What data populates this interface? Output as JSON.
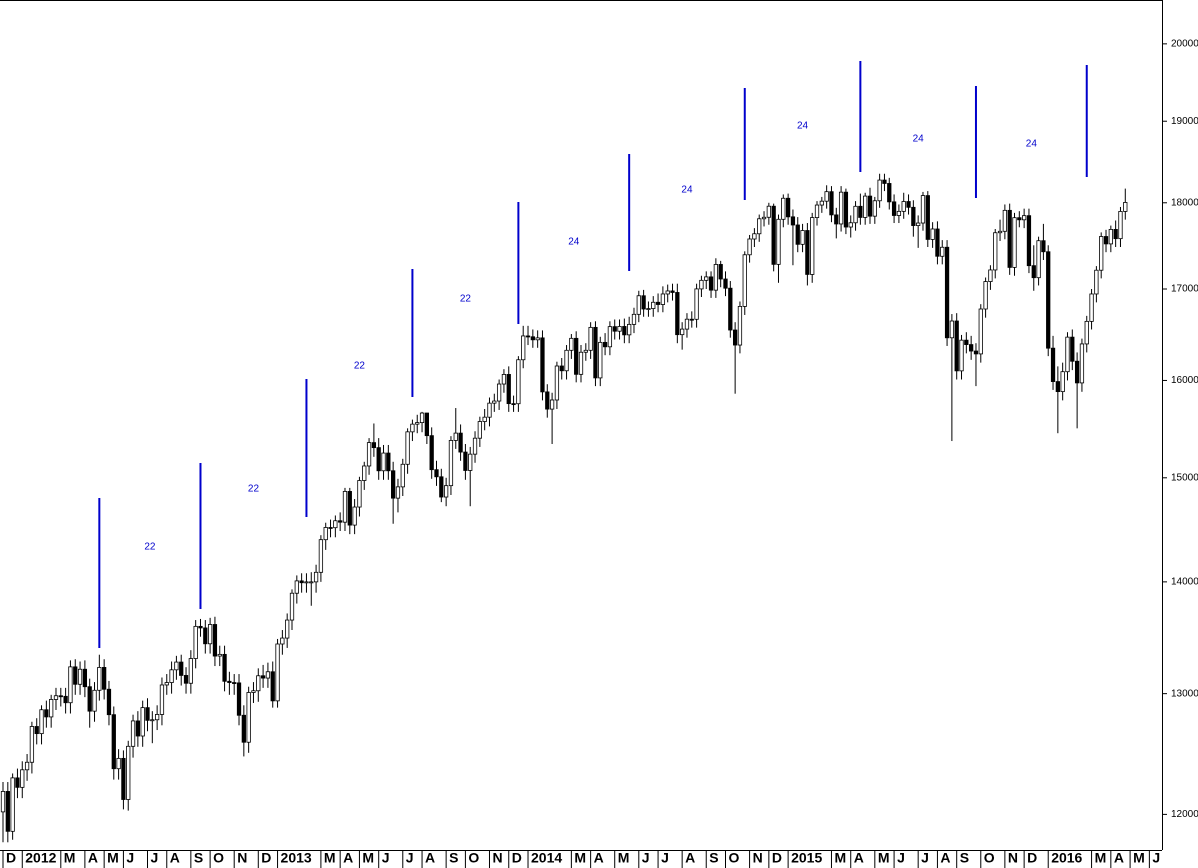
{
  "chart_data": {
    "type": "candlestick",
    "log_scale": true,
    "up_color": "#ffffff",
    "down_color": "#000000",
    "cycle_color": "#0000cc",
    "ylim": [
      11720,
      20590
    ],
    "yticks": [
      12000,
      13000,
      14000,
      15000,
      16000,
      17000,
      18000,
      19000,
      20000
    ],
    "annotations": [
      "22",
      "22",
      "22",
      "22",
      "24",
      "24",
      "24",
      "24",
      "24"
    ],
    "categories": [
      "D",
      null,
      null,
      null,
      "2012",
      null,
      null,
      null,
      null,
      null,
      null,
      null,
      "M",
      null,
      null,
      null,
      null,
      "A",
      null,
      null,
      null,
      "M",
      null,
      null,
      null,
      "J",
      null,
      null,
      null,
      null,
      "J",
      null,
      null,
      null,
      "A",
      null,
      null,
      null,
      null,
      "S",
      null,
      null,
      null,
      "O",
      null,
      null,
      null,
      null,
      "N",
      null,
      null,
      null,
      null,
      "D",
      null,
      null,
      null,
      "2013",
      null,
      null,
      null,
      null,
      null,
      null,
      null,
      null,
      "M",
      null,
      null,
      null,
      "A",
      null,
      null,
      null,
      "M",
      null,
      null,
      null,
      "J",
      null,
      null,
      null,
      null,
      "J",
      null,
      null,
      null,
      "A",
      null,
      null,
      null,
      null,
      "S",
      null,
      null,
      null,
      "O",
      null,
      null,
      null,
      null,
      "N",
      null,
      null,
      null,
      "D",
      null,
      null,
      null,
      "2014",
      null,
      null,
      null,
      null,
      null,
      null,
      null,
      null,
      "M",
      null,
      null,
      null,
      "A",
      null,
      null,
      null,
      null,
      "M",
      null,
      null,
      null,
      null,
      "J",
      null,
      null,
      null,
      "J",
      null,
      null,
      null,
      null,
      "A",
      null,
      null,
      null,
      null,
      "S",
      null,
      null,
      null,
      "O",
      null,
      null,
      null,
      null,
      "N",
      null,
      null,
      null,
      "D",
      null,
      null,
      null,
      "2015",
      null,
      null,
      null,
      null,
      null,
      null,
      null,
      null,
      "M",
      null,
      null,
      null,
      "A",
      null,
      null,
      null,
      null,
      "M",
      null,
      null,
      null,
      "J",
      null,
      null,
      null,
      null,
      "J",
      null,
      null,
      null,
      "A",
      null,
      null,
      null,
      "S",
      null,
      null,
      null,
      null,
      "O",
      null,
      null,
      null,
      null,
      "N",
      null,
      null,
      null,
      "D",
      null,
      null,
      null,
      null,
      "2016",
      null,
      null,
      null,
      null,
      null,
      null,
      null,
      null,
      "M",
      null,
      null,
      null,
      "A",
      null,
      null,
      null,
      "M",
      null,
      null,
      null,
      "J",
      null,
      null
    ],
    "open": [
      12020,
      12184,
      11866,
      12294,
      12217,
      12360,
      12422,
      12720,
      12660,
      12862,
      12801,
      12950,
      12982,
      12977,
      12922,
      13233,
      13081,
      13212,
      13060,
      12850,
      13029,
      13228,
      13038,
      12820,
      12369,
      12454,
      12119,
      12554,
      12767,
      12640,
      12880,
      12772,
      12777,
      12822,
      13075,
      13096,
      13207,
      13275,
      13158,
      13090,
      13306,
      13593,
      13579,
      13437,
      13610,
      13328,
      13343,
      13107,
      13096,
      13093,
      12815,
      12588,
      13010,
      13025,
      13155,
      13135,
      13190,
      12938,
      13435,
      13488,
      13650,
      13895,
      14009,
      13992,
      14000,
      14000,
      14089,
      14397,
      14514,
      14512,
      14579,
      14565,
      14865,
      14537,
      14712,
      14973,
      15118,
      15354,
      15303,
      15070,
      15248,
      15070,
      14799,
      14910,
      15135,
      15464,
      15543,
      15559,
      15658,
      15425,
      15081,
      15010,
      14810,
      14922,
      15376,
      15451,
      15258,
      15073,
      15237,
      15399,
      15570,
      15615,
      15761,
      15783,
      15962,
      16064,
      15756,
      15755,
      16221,
      16479,
      16470,
      16437,
      16458,
      15879,
      15699,
      15794,
      16154,
      16103,
      16323,
      16453,
      16065,
      16302,
      16323,
      16573,
      16027,
      16409,
      16361,
      16581,
      16531,
      16583,
      16491,
      16606,
      16717,
      16924,
      16776,
      16781,
      16851,
      16826,
      16944,
      16978,
      16961,
      16493,
      16554,
      16663,
      16662,
      17001,
      17098,
      17137,
      16987,
      17279,
      17113,
      17009,
      16544,
      16380,
      16805,
      17390,
      17573,
      17634,
      17810,
      17828,
      17959,
      17280,
      17804,
      18054,
      17833,
      17737,
      17511,
      17672,
      17165,
      17824,
      17973,
      18019,
      18133,
      17856,
      17749,
      18127,
      17713,
      17763,
      17958,
      17826,
      18080,
      17841,
      18024,
      18273,
      18232,
      18011,
      17849,
      17898,
      18015,
      17946,
      17730,
      17760,
      18086,
      17568,
      17690,
      17373,
      17477,
      16459,
      16643,
      16102,
      16433,
      16385,
      16315,
      16284,
      16776,
      17084,
      17216,
      17646,
      17663,
      17910,
      17245,
      17823,
      17798,
      17847,
      17265,
      17128,
      17553,
      17425,
      16346,
      15988,
      15882,
      16093,
      16466,
      16205,
      15974,
      16392,
      16639,
      16944,
      17213,
      17602,
      17516,
      17685,
      17577,
      17897,
      null,
      null,
      null,
      null,
      null,
      null,
      null
    ],
    "high": [
      12260,
      12260,
      12330,
      12370,
      12430,
      12490,
      12760,
      12790,
      12900,
      12940,
      12990,
      13050,
      13050,
      13050,
      13290,
      13300,
      13280,
      13290,
      13130,
      13100,
      13340,
      13300,
      13110,
      12890,
      12530,
      12520,
      12600,
      12820,
      12850,
      12940,
      12960,
      12850,
      12900,
      13140,
      13170,
      13280,
      13330,
      13340,
      13230,
      13380,
      13650,
      13660,
      13650,
      13670,
      13680,
      13420,
      13420,
      13190,
      13170,
      13170,
      12900,
      13060,
      13100,
      13220,
      13250,
      13270,
      13280,
      13480,
      13560,
      13710,
      13930,
      14060,
      14080,
      14080,
      14090,
      14160,
      14440,
      14560,
      14590,
      14630,
      14660,
      14900,
      14900,
      14790,
      15010,
      15160,
      15400,
      15550,
      15400,
      15330,
      15330,
      15160,
      14990,
      15190,
      15500,
      15590,
      15640,
      15670,
      15660,
      15510,
      15170,
      15090,
      15000,
      15420,
      15710,
      15540,
      15340,
      15310,
      15470,
      15620,
      15700,
      15820,
      15860,
      16010,
      16120,
      16150,
      15840,
      16260,
      16590,
      16590,
      16550,
      16540,
      16540,
      15960,
      15870,
      16200,
      16240,
      16380,
      16500,
      16530,
      16380,
      16400,
      16630,
      16640,
      16470,
      16510,
      16640,
      16660,
      16660,
      16670,
      16690,
      16790,
      16980,
      16990,
      16860,
      16920,
      16950,
      17030,
      17050,
      17060,
      17060,
      16630,
      16730,
      16750,
      17060,
      17150,
      17200,
      17200,
      17350,
      17320,
      17200,
      17090,
      16630,
      16860,
      17430,
      17620,
      17700,
      17860,
      17900,
      18000,
      17990,
      17860,
      18100,
      18110,
      17920,
      17830,
      17750,
      17760,
      17880,
      18020,
      18070,
      18210,
      18200,
      17940,
      18200,
      18170,
      17850,
      18020,
      18110,
      18120,
      18180,
      18070,
      18350,
      18350,
      18300,
      18100,
      17980,
      18120,
      18100,
      18030,
      17850,
      18130,
      18140,
      17770,
      17780,
      17560,
      17560,
      16720,
      16730,
      16490,
      16520,
      16480,
      16400,
      16830,
      17130,
      17270,
      17690,
      17800,
      17980,
      17990,
      17880,
      17900,
      17930,
      17930,
      17500,
      17600,
      17750,
      17500,
      16480,
      16150,
      16190,
      16520,
      16550,
      16300,
      16450,
      16700,
      17000,
      17260,
      17650,
      17680,
      17730,
      17790,
      17950,
      18170,
      null,
      null,
      null,
      null,
      null,
      null,
      null
    ],
    "low": [
      11780,
      11780,
      11800,
      12130,
      12130,
      12270,
      12330,
      12570,
      12570,
      12710,
      12710,
      12860,
      12890,
      12830,
      12830,
      12990,
      12990,
      12970,
      12710,
      12760,
      12940,
      12950,
      12730,
      12280,
      12280,
      12040,
      12030,
      12460,
      12550,
      12550,
      12680,
      12580,
      12690,
      12730,
      12990,
      13000,
      13120,
      13070,
      13000,
      13000,
      13220,
      13500,
      13350,
      13350,
      13240,
      13240,
      13020,
      12990,
      12990,
      12730,
      12470,
      12500,
      12920,
      12930,
      13050,
      13050,
      12880,
      12880,
      13340,
      13400,
      13560,
      13800,
      13900,
      13900,
      13780,
      13900,
      14000,
      14300,
      14420,
      14420,
      14480,
      14480,
      14450,
      14450,
      14620,
      14880,
      15030,
      15210,
      14980,
      14980,
      14980,
      14550,
      14660,
      14820,
      15040,
      15370,
      15450,
      15460,
      15340,
      14990,
      14920,
      14760,
      14720,
      14830,
      15290,
      15170,
      14980,
      14720,
      15150,
      15310,
      15480,
      15520,
      15670,
      15690,
      15870,
      15670,
      15670,
      15670,
      16130,
      16380,
      16350,
      16350,
      15790,
      15610,
      15340,
      15700,
      16010,
      16010,
      16230,
      15980,
      15980,
      16210,
      16230,
      15940,
      15940,
      16270,
      16270,
      16440,
      16440,
      16400,
      16400,
      16510,
      16630,
      16690,
      16690,
      16690,
      16740,
      16740,
      16850,
      16870,
      16400,
      16330,
      16460,
      16570,
      16570,
      16910,
      17000,
      16900,
      16900,
      17020,
      16920,
      16460,
      15860,
      16290,
      16710,
      17300,
      17480,
      17540,
      17720,
      17740,
      17200,
      17070,
      17710,
      17740,
      17270,
      17420,
      17420,
      17040,
      17070,
      17730,
      17880,
      17930,
      17770,
      17580,
      17660,
      17630,
      17590,
      17670,
      17740,
      17740,
      17750,
      17750,
      17940,
      18140,
      17920,
      17760,
      17760,
      17810,
      17860,
      17600,
      17470,
      17670,
      17480,
      17470,
      17280,
      17280,
      16370,
      15370,
      16010,
      16010,
      16290,
      16220,
      15940,
      16190,
      16680,
      16990,
      17120,
      17550,
      17570,
      17160,
      17150,
      17710,
      17700,
      17180,
      16980,
      17040,
      17330,
      16260,
      15900,
      15450,
      15790,
      16000,
      16110,
      15500,
      15880,
      16300,
      16550,
      16850,
      17120,
      17420,
      17420,
      17480,
      17480,
      17800,
      null,
      null,
      null,
      null,
      null,
      null,
      null
    ],
    "close": [
      12184,
      11866,
      12294,
      12217,
      12360,
      12422,
      12720,
      12660,
      12862,
      12801,
      12950,
      12982,
      12977,
      12922,
      13233,
      13081,
      13212,
      13060,
      12850,
      13029,
      13228,
      13038,
      12820,
      12369,
      12454,
      12119,
      12554,
      12767,
      12640,
      12880,
      12772,
      12777,
      12822,
      13075,
      13096,
      13207,
      13275,
      13158,
      13090,
      13306,
      13593,
      13579,
      13437,
      13610,
      13328,
      13343,
      13107,
      13096,
      13093,
      12815,
      12588,
      13010,
      13025,
      13155,
      13135,
      13190,
      12938,
      13435,
      13488,
      13650,
      13895,
      14009,
      13992,
      14000,
      14000,
      14089,
      14397,
      14514,
      14512,
      14579,
      14565,
      14865,
      14537,
      14712,
      14973,
      15118,
      15354,
      15303,
      15070,
      15248,
      15070,
      14799,
      14910,
      15135,
      15464,
      15543,
      15559,
      15658,
      15425,
      15081,
      15010,
      14810,
      14922,
      15376,
      15451,
      15258,
      15073,
      15237,
      15399,
      15570,
      15615,
      15761,
      15783,
      15962,
      16064,
      15756,
      15755,
      16221,
      16479,
      16470,
      16437,
      16458,
      15879,
      15699,
      15794,
      16154,
      16103,
      16323,
      16453,
      16065,
      16302,
      16323,
      16573,
      16027,
      16409,
      16361,
      16581,
      16531,
      16583,
      16491,
      16606,
      16717,
      16924,
      16776,
      16781,
      16851,
      16826,
      16944,
      16978,
      16961,
      16493,
      16554,
      16663,
      16662,
      17001,
      17098,
      17137,
      16987,
      17279,
      17113,
      17009,
      16544,
      16380,
      16805,
      17390,
      17573,
      17634,
      17810,
      17828,
      17959,
      17280,
      17804,
      18054,
      17833,
      17737,
      17511,
      17672,
      17165,
      17824,
      17973,
      18019,
      18133,
      17856,
      17749,
      18127,
      17713,
      17763,
      17958,
      17826,
      18080,
      17841,
      18024,
      18273,
      18232,
      18011,
      17849,
      17898,
      18015,
      17946,
      17730,
      17760,
      18086,
      17568,
      17690,
      17373,
      17477,
      16459,
      16643,
      16102,
      16433,
      16385,
      16315,
      16284,
      16776,
      17084,
      17216,
      17646,
      17663,
      17910,
      17245,
      17823,
      17798,
      17847,
      17265,
      17128,
      17553,
      17425,
      16346,
      15988,
      15882,
      16093,
      16466,
      16205,
      15974,
      16392,
      16639,
      16944,
      17213,
      17602,
      17516,
      17685,
      17577,
      17897,
      18004,
      null,
      null,
      null,
      null,
      null,
      null,
      null
    ]
  }
}
